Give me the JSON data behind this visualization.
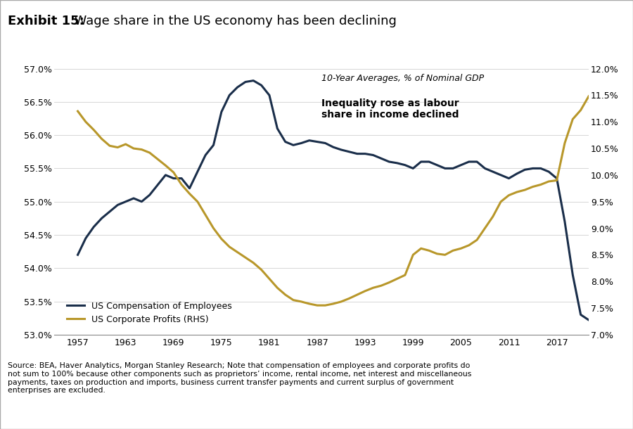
{
  "title_bold": "Exhibit 15:",
  "title_normal": "  Wage share in the US economy has been declining",
  "subtitle": "10-Year Averages, % of Nominal GDP",
  "annotation": "Inequality rose as labour\nshare in income declined",
  "source_text": "Source: BEA, Haver Analytics, Morgan Stanley Research; Note that compensation of employees and corporate profits do not sum to 100% because other components such as proprietors’ income, rental income, net interest and miscellaneous payments, taxes on production and imports, business current transfer payments and current surplus of government enterprises are excluded.",
  "left_ylim": [
    53.0,
    57.0
  ],
  "right_ylim": [
    7.0,
    12.0
  ],
  "left_yticks": [
    53.0,
    53.5,
    54.0,
    54.5,
    55.0,
    55.5,
    56.0,
    56.5,
    57.0
  ],
  "right_yticks": [
    7.0,
    7.5,
    8.0,
    8.5,
    9.0,
    9.5,
    10.0,
    10.5,
    11.0,
    11.5,
    12.0
  ],
  "xticks": [
    1957,
    1963,
    1969,
    1975,
    1981,
    1987,
    1993,
    1999,
    2005,
    2011,
    2017
  ],
  "xlim": [
    1954,
    2021
  ],
  "color_comp": "#1a2e4a",
  "color_profit": "#b8972a",
  "legend_comp": "US Compensation of Employees",
  "legend_profit": "US Corporate Profits (RHS)",
  "comp_data": {
    "1957": 54.2,
    "1958": 54.45,
    "1959": 54.62,
    "1960": 54.75,
    "1961": 54.85,
    "1962": 54.95,
    "1963": 55.0,
    "1964": 55.05,
    "1965": 55.0,
    "1966": 55.1,
    "1967": 55.25,
    "1968": 55.4,
    "1969": 55.35,
    "1970": 55.35,
    "1971": 55.2,
    "1972": 55.45,
    "1973": 55.7,
    "1974": 55.85,
    "1975": 56.35,
    "1976": 56.6,
    "1977": 56.72,
    "1978": 56.8,
    "1979": 56.82,
    "1980": 56.75,
    "1981": 56.6,
    "1982": 56.1,
    "1983": 55.9,
    "1984": 55.85,
    "1985": 55.88,
    "1986": 55.92,
    "1987": 55.9,
    "1988": 55.88,
    "1989": 55.82,
    "1990": 55.78,
    "1991": 55.75,
    "1992": 55.72,
    "1993": 55.72,
    "1994": 55.7,
    "1995": 55.65,
    "1996": 55.6,
    "1997": 55.58,
    "1998": 55.55,
    "1999": 55.5,
    "2000": 55.6,
    "2001": 55.6,
    "2002": 55.55,
    "2003": 55.5,
    "2004": 55.5,
    "2005": 55.55,
    "2006": 55.6,
    "2007": 55.6,
    "2008": 55.5,
    "2009": 55.45,
    "2010": 55.4,
    "2011": 55.35,
    "2012": 55.42,
    "2013": 55.48,
    "2014": 55.5,
    "2015": 55.5,
    "2016": 55.45,
    "2017": 55.35,
    "2018": 54.7,
    "2019": 53.9,
    "2020": 53.3,
    "2021": 53.22
  },
  "profit_data": {
    "1957": 11.2,
    "1958": 11.0,
    "1959": 10.85,
    "1960": 10.68,
    "1961": 10.55,
    "1962": 10.52,
    "1963": 10.58,
    "1964": 10.5,
    "1965": 10.48,
    "1966": 10.42,
    "1967": 10.3,
    "1968": 10.18,
    "1969": 10.05,
    "1970": 9.82,
    "1971": 9.65,
    "1972": 9.5,
    "1973": 9.25,
    "1974": 9.0,
    "1975": 8.8,
    "1976": 8.65,
    "1977": 8.55,
    "1978": 8.45,
    "1979": 8.35,
    "1980": 8.22,
    "1981": 8.05,
    "1982": 7.88,
    "1983": 7.75,
    "1984": 7.65,
    "1985": 7.62,
    "1986": 7.58,
    "1987": 7.55,
    "1988": 7.55,
    "1989": 7.58,
    "1990": 7.62,
    "1991": 7.68,
    "1992": 7.75,
    "1993": 7.82,
    "1994": 7.88,
    "1995": 7.92,
    "1996": 7.98,
    "1997": 8.05,
    "1998": 8.12,
    "1999": 8.5,
    "2000": 8.62,
    "2001": 8.58,
    "2002": 8.52,
    "2003": 8.5,
    "2004": 8.58,
    "2005": 8.62,
    "2006": 8.68,
    "2007": 8.78,
    "2008": 9.0,
    "2009": 9.22,
    "2010": 9.5,
    "2011": 9.62,
    "2012": 9.68,
    "2013": 9.72,
    "2014": 9.78,
    "2015": 9.82,
    "2016": 9.88,
    "2017": 9.9,
    "2018": 10.6,
    "2019": 11.05,
    "2020": 11.22,
    "2021": 11.48
  }
}
